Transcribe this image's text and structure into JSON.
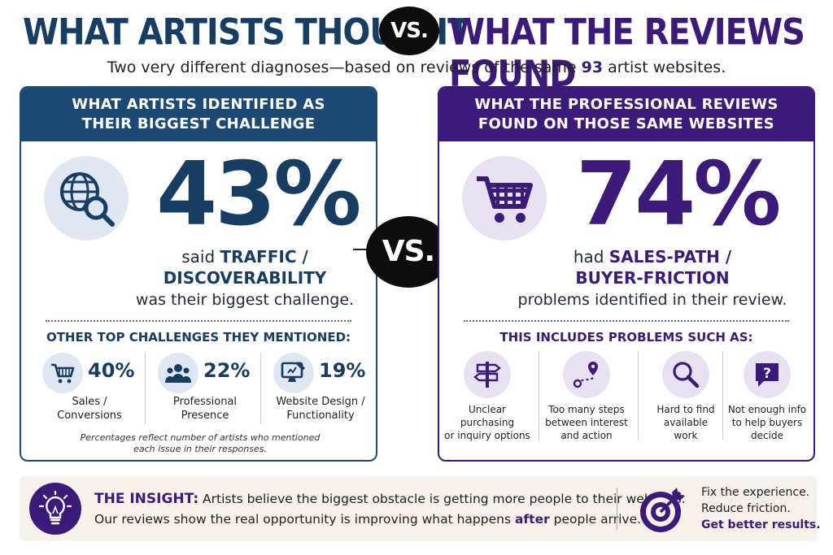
{
  "title": {
    "left": "WHAT ARTISTS THOUGHT",
    "vs": "VS.",
    "right": "WHAT THE REVIEWS FOUND"
  },
  "subtitle": {
    "before": "Two very different diagnoses—based on reviews of the same ",
    "number": "93",
    "after": " artist websites."
  },
  "left_panel": {
    "heading_line1": "WHAT ARTISTS IDENTIFIED AS",
    "heading_line2": "THEIR BIGGEST CHALLENGE",
    "icon": "globe-search-icon",
    "percent": "43%",
    "line1_before": "said ",
    "line1_highlight": "TRAFFIC /",
    "line2_highlight": "DISCOVERABILITY",
    "line3": "was their biggest challenge.",
    "subheading": "OTHER TOP CHALLENGES THEY MENTIONED:",
    "challenges": [
      {
        "icon": "shopping-cart-icon",
        "percent": "40%",
        "label_line1": "Sales /",
        "label_line2": "Conversions"
      },
      {
        "icon": "people-group-icon",
        "percent": "22%",
        "label_line1": "Professional",
        "label_line2": "Presence"
      },
      {
        "icon": "monitor-design-icon",
        "percent": "19%",
        "label_line1": "Website Design /",
        "label_line2": "Functionality"
      }
    ],
    "footnote_line1": "Percentages reflect number of artists who mentioned",
    "footnote_line2": "each issue in their responses."
  },
  "middle_vs": "VS.",
  "right_panel": {
    "heading_line1": "WHAT THE PROFESSIONAL REVIEWS",
    "heading_line2": "FOUND ON THOSE SAME WEBSITES",
    "icon": "shopping-cart-icon",
    "percent": "74%",
    "line1_before": "had ",
    "line1_highlight": "SALES-PATH /",
    "line2_highlight": "BUYER-FRICTION",
    "line3": "problems identified in their review.",
    "subheading": "THIS INCLUDES PROBLEMS SUCH AS:",
    "problems": [
      {
        "icon": "signpost-icon",
        "label_line1": "Unclear purchasing",
        "label_line2": "or inquiry options",
        "label_line3": ""
      },
      {
        "icon": "route-pin-icon",
        "label_line1": "Too many steps",
        "label_line2": "between interest",
        "label_line3": "and action"
      },
      {
        "icon": "magnifier-icon",
        "label_line1": "Hard to find",
        "label_line2": "available",
        "label_line3": "work"
      },
      {
        "icon": "question-bubble-icon",
        "label_line1": "Not enough info",
        "label_line2": "to help buyers",
        "label_line3": "decide"
      }
    ]
  },
  "insight": {
    "icon": "lightbulb-icon",
    "label": "THE INSIGHT:",
    "line1": " Artists believe the biggest obstacle is getting more people to their websites.",
    "line2_before": "Our reviews show the real opportunity is improving what happens ",
    "line2_highlight": "after",
    "line2_after": " people arrive.",
    "cta_icon": "target-arrow-icon",
    "cta_line1": "Fix the experience.",
    "cta_line2": "Reduce friction.",
    "cta_line3": "Get better results."
  },
  "colors": {
    "navy": "#173d63",
    "purple": "#3b1a7a",
    "insight_bg": "#f6f2e9"
  }
}
